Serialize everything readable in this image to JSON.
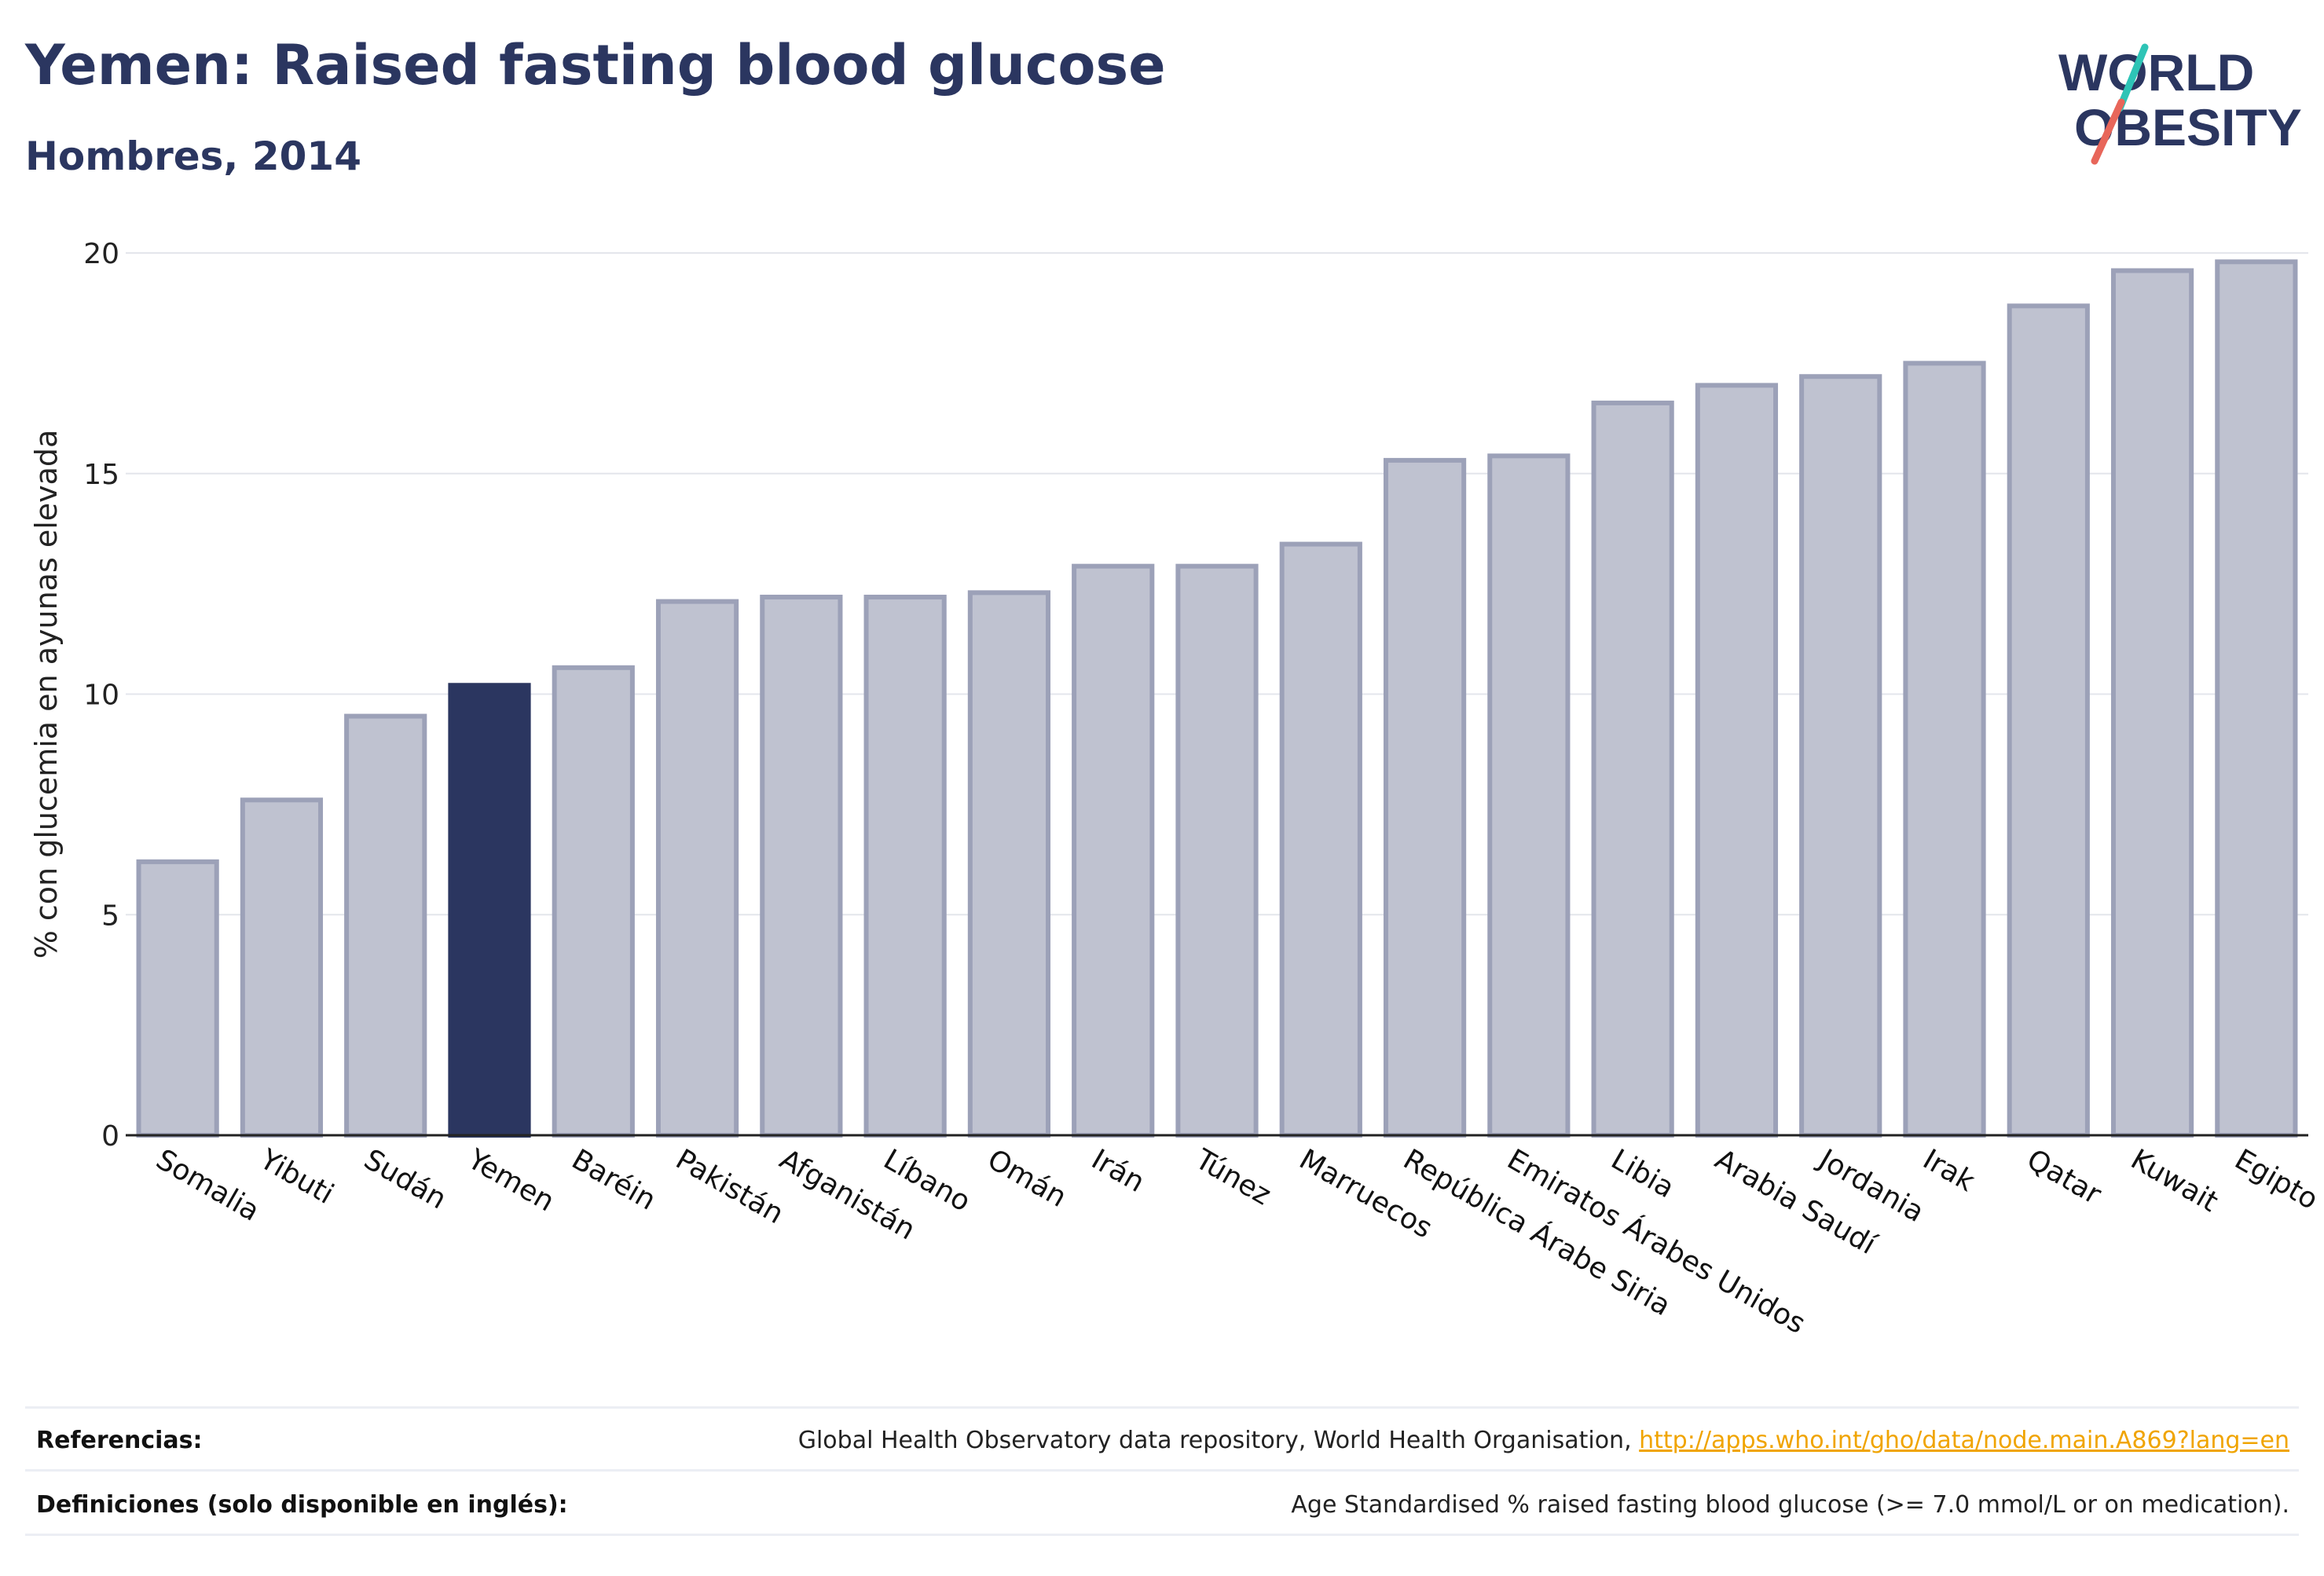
{
  "header": {
    "title": "Yemen: Raised fasting blood glucose",
    "subtitle": "Hombres, 2014",
    "logo_text_top": "WORLD",
    "logo_text_bottom": "OBESITY"
  },
  "colors": {
    "highlight": "#2b3660",
    "bar_fill": "#bfc2d0",
    "bar_stroke": "#9ca1b8",
    "text_dark": "#2b3660",
    "link": "#f0a400",
    "logo_teal": "#2ec4b6",
    "logo_coral": "#e8665a"
  },
  "chart_data": {
    "type": "bar",
    "ylabel": "% con glucemia en ayunas elevada",
    "ylim": [
      0,
      20
    ],
    "yticks": [
      0,
      5,
      10,
      15,
      20
    ],
    "grid": true,
    "highlight_category": "Yemen",
    "categories": [
      "Somalia",
      "Yibuti",
      "Sudán",
      "Yemen",
      "Baréin",
      "Pakistán",
      "Afganistán",
      "Líbano",
      "Omán",
      "Irán",
      "Túnez",
      "Marruecos",
      "República Árabe Siria",
      "Emiratos Árabes Unidos",
      "Libia",
      "Arabia Saudí",
      "Jordania",
      "Irak",
      "Qatar",
      "Kuwait",
      "Egipto"
    ],
    "values": [
      6.2,
      7.6,
      9.5,
      10.2,
      10.6,
      12.1,
      12.2,
      12.2,
      12.3,
      12.9,
      12.9,
      13.4,
      15.3,
      15.4,
      16.6,
      17.0,
      17.2,
      17.5,
      18.8,
      19.6,
      19.8
    ]
  },
  "footer": {
    "references_label": "Referencias:",
    "references_text": "Global Health Observatory data repository, World Health Organisation, ",
    "references_link": "http://apps.who.int/gho/data/node.main.A869?lang=en",
    "definitions_label": "Definiciones (solo disponible en inglés):",
    "definitions_text": "Age Standardised % raised fasting blood glucose (>= 7.0 mmol/L or on medication)."
  }
}
